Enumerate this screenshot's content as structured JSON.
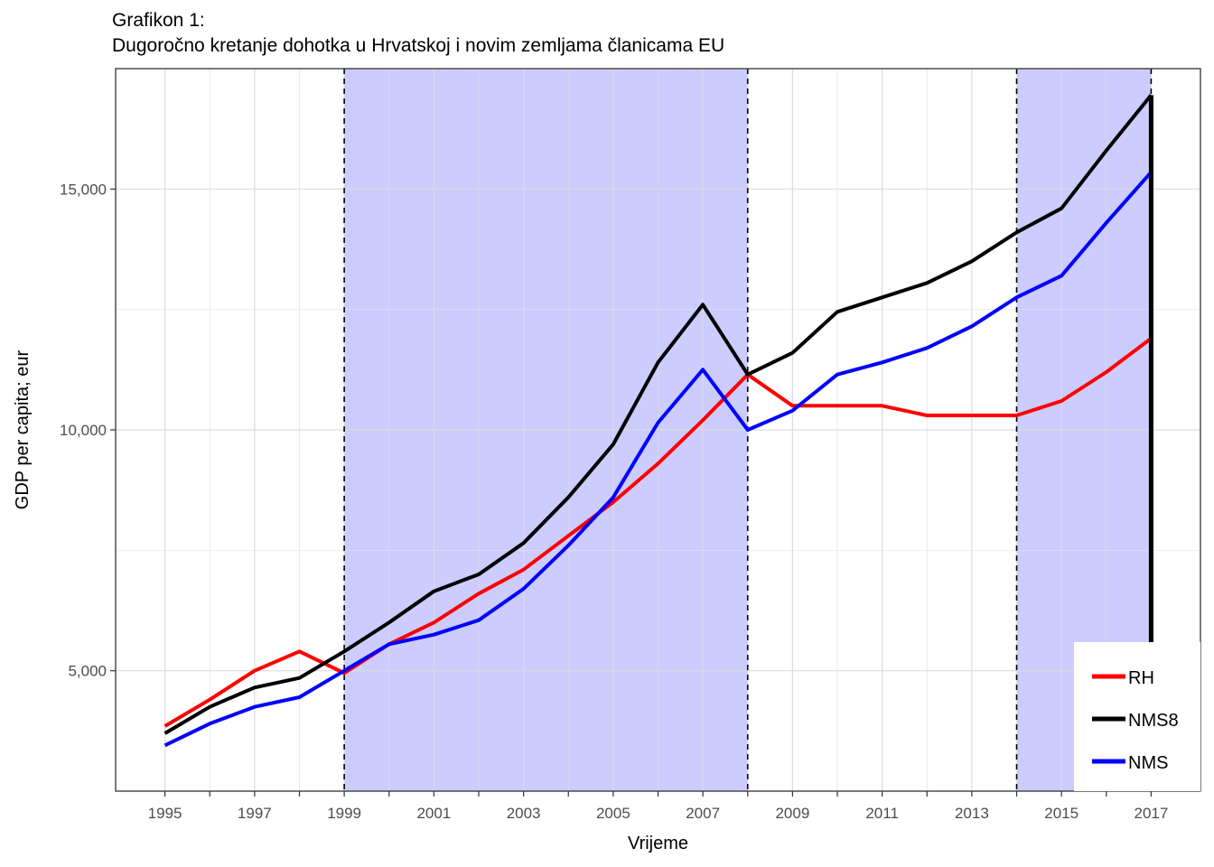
{
  "chart_data": {
    "type": "line",
    "title": "Grafikon 1:",
    "subtitle": "Dugoročno kretanje dohotka u Hrvatskoj i novim zemljama članicama EU",
    "xlabel": "Vrijeme",
    "ylabel": "GDP per capita; eur",
    "x": [
      1995,
      1996,
      1997,
      1998,
      1999,
      2000,
      2001,
      2002,
      2003,
      2004,
      2005,
      2006,
      2007,
      2008,
      2009,
      2010,
      2011,
      2012,
      2013,
      2014,
      2015,
      2016,
      2017
    ],
    "x_ticks": [
      "1995",
      "1997",
      "1999",
      "2001",
      "2003",
      "2005",
      "2007",
      "2009",
      "2011",
      "2013",
      "2015",
      "2017"
    ],
    "y_ticks": [
      "5,000",
      "10,000",
      "15,000"
    ],
    "xlim": [
      1993.9,
      2018.1
    ],
    "ylim": [
      2500,
      17500
    ],
    "grid": true,
    "legend_position": "bottom-right",
    "shaded_periods": [
      [
        1999,
        2008
      ],
      [
        2014,
        2017
      ]
    ],
    "vlines": [
      1999,
      2008,
      2014,
      2017
    ],
    "series": [
      {
        "name": "RH",
        "color": "#ff0000",
        "values": [
          3850,
          4400,
          5000,
          5400,
          4950,
          5550,
          6000,
          6600,
          7100,
          7800,
          8500,
          9300,
          10200,
          11150,
          10500,
          10500,
          10500,
          10300,
          10300,
          10300,
          10600,
          11200,
          11900
        ]
      },
      {
        "name": "NMS8",
        "color": "#000000",
        "values": [
          3700,
          4250,
          4650,
          4850,
          5400,
          6000,
          6650,
          7000,
          7650,
          8600,
          9700,
          11400,
          12600,
          11150,
          11600,
          12450,
          12750,
          13050,
          13500,
          14100,
          14600,
          15800,
          16950
        ]
      },
      {
        "name": "NMS",
        "color": "#0000ff",
        "values": [
          3450,
          3900,
          4250,
          4450,
          5000,
          5550,
          5750,
          6050,
          6700,
          7600,
          8600,
          10150,
          11250,
          10000,
          10400,
          11150,
          11400,
          11700,
          12150,
          12750,
          13200,
          14300,
          15350
        ]
      }
    ]
  }
}
